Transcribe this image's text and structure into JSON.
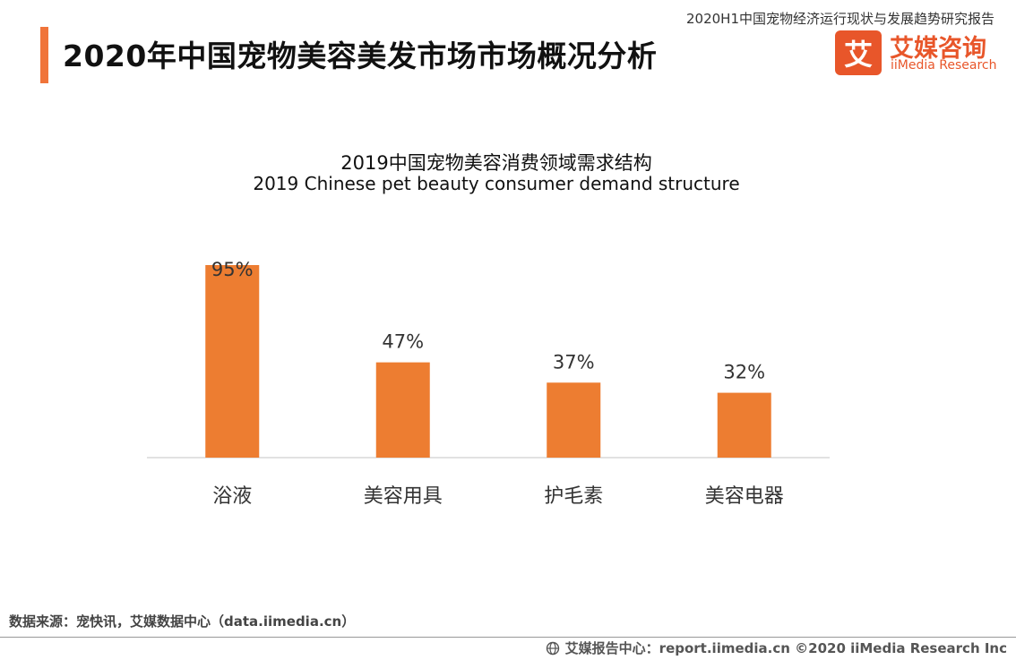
{
  "header": {
    "report_title": "2020H1中国宠物经济运行现状与发展趋势研究报告",
    "page_title": "2020年中国宠物美容美发市场市场概况分析"
  },
  "logo": {
    "mark": "艾",
    "cn": "艾媒咨询",
    "en": "iiMedia Research"
  },
  "colors": {
    "accent": "#f0743a",
    "bar": "#ed7d31",
    "brand": "#e8562a",
    "axis": "#d9d9d9"
  },
  "chart_data": {
    "type": "bar",
    "title": "2019中国宠物美容消费领域需求结构",
    "subtitle": "2019 Chinese pet beauty consumer demand structure",
    "categories": [
      "浴液",
      "美容用具",
      "护毛素",
      "美容电器"
    ],
    "values": [
      95,
      47,
      37,
      32
    ],
    "value_labels": [
      "95%",
      "47%",
      "37%",
      "32%"
    ],
    "ylim": [
      0,
      95
    ],
    "grid": false,
    "legend": "none"
  },
  "footer": {
    "source": "数据来源：宠快讯，艾媒数据中心（data.iimedia.cn）",
    "globe_icon": "globe-icon",
    "copyright": "艾媒报告中心：report.iimedia.cn  ©2020  iiMedia Research  Inc"
  }
}
